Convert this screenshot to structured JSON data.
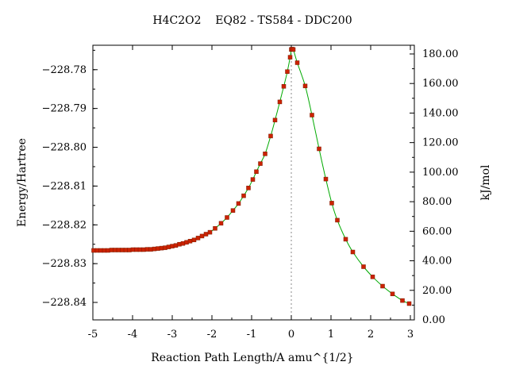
{
  "chart_data": {
    "type": "scatter",
    "title": "H4C2O2    EQ82 - TS584 - DDC200",
    "xlabel": "Reaction Path Length/A amu^{1/2}",
    "ylabel": "Energy/Hartree",
    "y2label": "kJ/mol",
    "xlim": [
      -5.0,
      3.1
    ],
    "ylim": [
      -228.8445,
      -228.7737
    ],
    "y2lim": [
      0.0,
      185.9
    ],
    "x_ticks": [
      "-5",
      "-4",
      "-3",
      "-2",
      "-1",
      "0",
      "1",
      "2",
      "3"
    ],
    "y_ticks": [
      "-228.78",
      "-228.79",
      "-228.80",
      "-228.81",
      "-228.82",
      "-228.83",
      "-228.84"
    ],
    "y2_ticks": [
      "0.00",
      "20.00",
      "40.00",
      "60.00",
      "80.00",
      "100.00",
      "120.00",
      "140.00",
      "160.00",
      "180.00"
    ],
    "grid": false,
    "ts_marker_x": 0.0,
    "series": [
      {
        "marker_color": "#cc2200",
        "line_color": "#00aa00",
        "points": [
          [
            -4.98,
            -228.8266
          ],
          [
            -4.89,
            -228.8266
          ],
          [
            -4.8,
            -228.8266
          ],
          [
            -4.71,
            -228.8266
          ],
          [
            -4.62,
            -228.8266
          ],
          [
            -4.53,
            -228.8265
          ],
          [
            -4.44,
            -228.8265
          ],
          [
            -4.35,
            -228.8265
          ],
          [
            -4.26,
            -228.8265
          ],
          [
            -4.17,
            -228.8265
          ],
          [
            -4.08,
            -228.8265
          ],
          [
            -3.99,
            -228.8264
          ],
          [
            -3.9,
            -228.8264
          ],
          [
            -3.81,
            -228.8264
          ],
          [
            -3.72,
            -228.8264
          ],
          [
            -3.63,
            -228.8263
          ],
          [
            -3.54,
            -228.8263
          ],
          [
            -3.45,
            -228.8262
          ],
          [
            -3.36,
            -228.8261
          ],
          [
            -3.27,
            -228.826
          ],
          [
            -3.18,
            -228.8259
          ],
          [
            -3.09,
            -228.8257
          ],
          [
            -3.0,
            -228.8255
          ],
          [
            -2.91,
            -228.8253
          ],
          [
            -2.82,
            -228.825
          ],
          [
            -2.73,
            -228.8248
          ],
          [
            -2.64,
            -228.8245
          ],
          [
            -2.55,
            -228.8242
          ],
          [
            -2.45,
            -228.8239
          ],
          [
            -2.35,
            -228.8234
          ],
          [
            -2.25,
            -228.8229
          ],
          [
            -2.15,
            -228.8224
          ],
          [
            -2.05,
            -228.8219
          ],
          [
            -1.92,
            -228.8209
          ],
          [
            -1.77,
            -228.8196
          ],
          [
            -1.62,
            -228.8181
          ],
          [
            -1.47,
            -228.8163
          ],
          [
            -1.33,
            -228.8145
          ],
          [
            -1.2,
            -228.8125
          ],
          [
            -1.08,
            -228.8105
          ],
          [
            -0.97,
            -228.8083
          ],
          [
            -0.88,
            -228.8063
          ],
          [
            -0.78,
            -228.8042
          ],
          [
            -0.66,
            -228.8017
          ],
          [
            -0.52,
            -228.7971
          ],
          [
            -0.41,
            -228.793
          ],
          [
            -0.29,
            -228.7883
          ],
          [
            -0.19,
            -228.7843
          ],
          [
            -0.1,
            -228.7805
          ],
          [
            -0.03,
            -228.7768
          ],
          [
            0.0,
            -228.7748
          ],
          [
            0.02,
            -228.7747
          ],
          [
            0.05,
            -228.7748
          ],
          [
            0.15,
            -228.7782
          ],
          [
            0.35,
            -228.7842
          ],
          [
            0.52,
            -228.7917
          ],
          [
            0.7,
            -228.8004
          ],
          [
            0.87,
            -228.8082
          ],
          [
            1.02,
            -228.8144
          ],
          [
            1.16,
            -228.8188
          ],
          [
            1.37,
            -228.8237
          ],
          [
            1.55,
            -228.827
          ],
          [
            1.82,
            -228.8308
          ],
          [
            2.05,
            -228.8334
          ],
          [
            2.3,
            -228.8358
          ],
          [
            2.55,
            -228.8378
          ],
          [
            2.8,
            -228.8395
          ],
          [
            2.97,
            -228.8403
          ]
        ]
      }
    ]
  }
}
